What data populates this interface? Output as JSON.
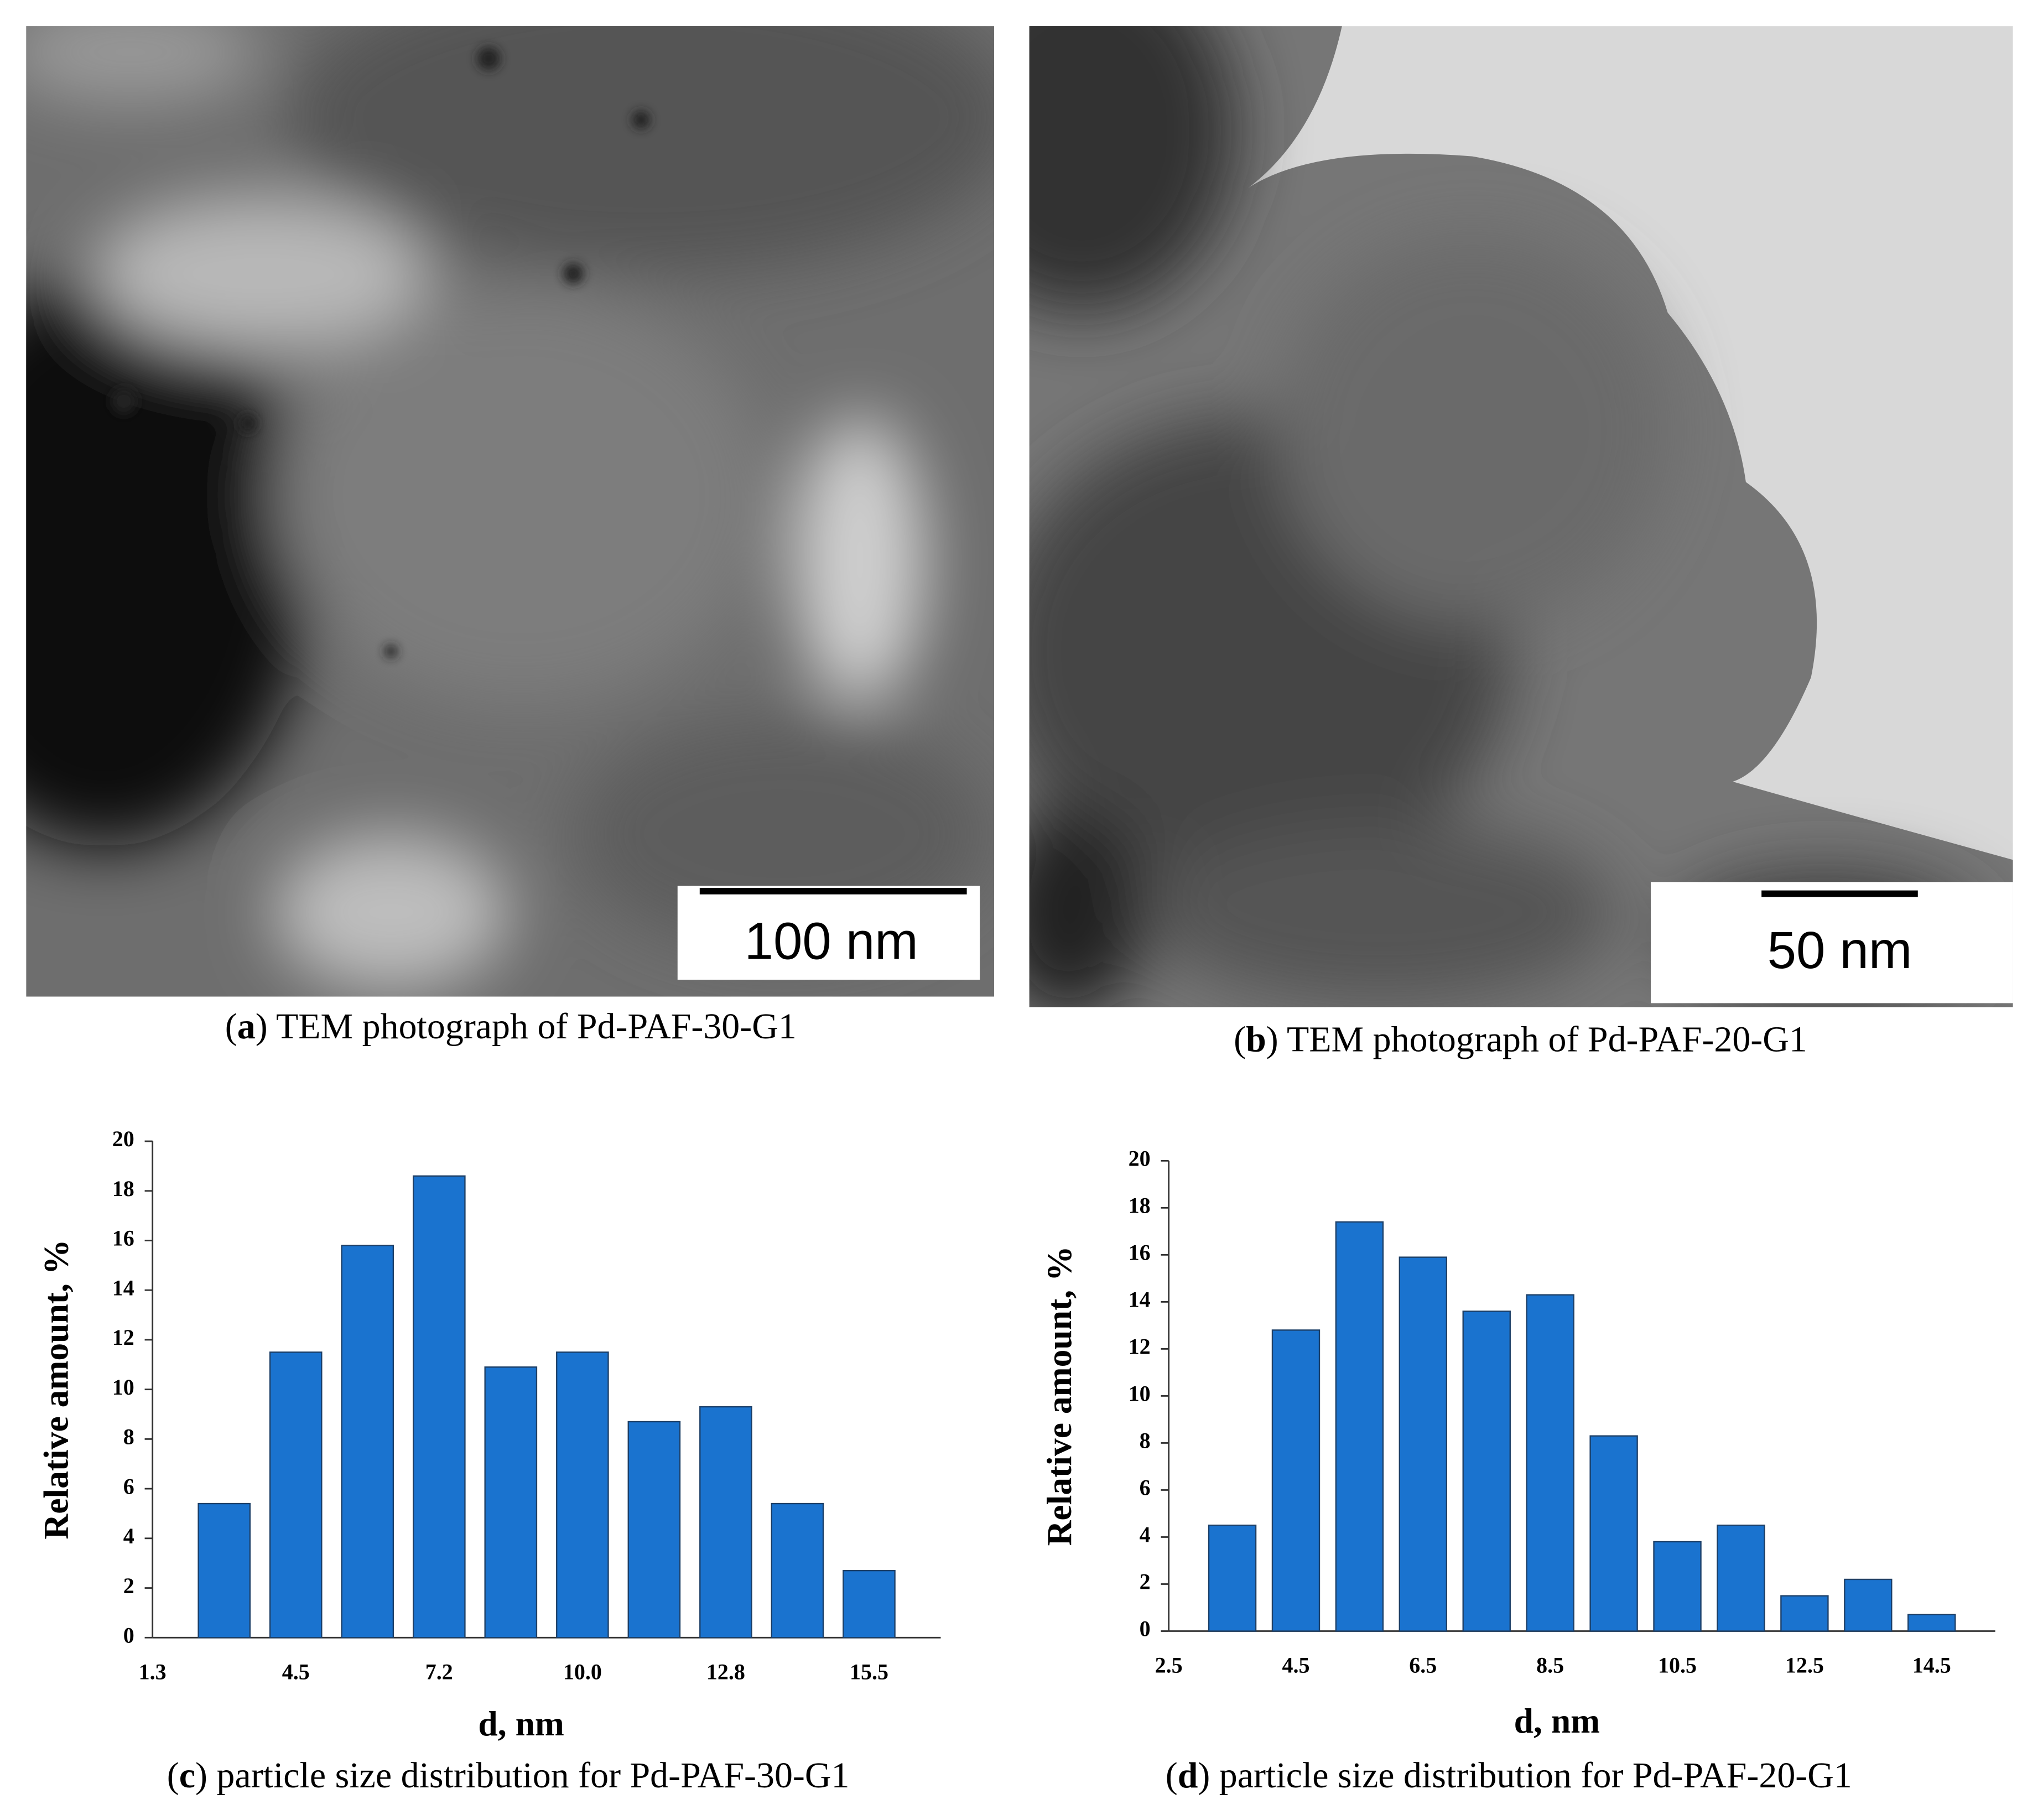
{
  "panels": [
    {
      "caption": [
        "(",
        "a",
        ") TEM photograph of Pd-PAF-30-G1"
      ],
      "scale_bar": "100 nm"
    },
    {
      "caption": [
        "(",
        "b",
        ") TEM photograph of Pd-PAF-20-G1"
      ],
      "scale_bar": "50 nm"
    }
  ],
  "chart_data": [
    {
      "type": "bar",
      "caption": [
        "(",
        "c",
        ") particle size distribution for Pd-PAF-30-G1"
      ],
      "x_label": "d, nm",
      "y_label": "Relative amount, %",
      "categories": [
        "1.3",
        null,
        "4.5",
        null,
        "7.2",
        null,
        "10.0",
        null,
        "12.8",
        null,
        "15.5"
      ],
      "values": [
        null,
        5.4,
        11.5,
        15.8,
        18.6,
        10.9,
        11.5,
        8.7,
        9.3,
        5.4,
        2.7
      ],
      "color": "#1a73cf",
      "ylim": [
        0,
        20
      ],
      "yticks": [
        0,
        2,
        4,
        6,
        8,
        10,
        12,
        14,
        16,
        18,
        20
      ]
    },
    {
      "type": "bar",
      "caption": [
        "(",
        "d",
        ") particle size distribution for Pd-PAF-20-G1"
      ],
      "x_label": "d, nm",
      "y_label": "Relative amount, %",
      "categories": [
        "2.5",
        null,
        "4.5",
        null,
        "6.5",
        null,
        "8.5",
        null,
        "10.5",
        null,
        "12.5",
        null,
        "14.5"
      ],
      "values": [
        null,
        4.5,
        12.8,
        17.4,
        15.9,
        13.6,
        14.3,
        8.3,
        3.8,
        4.5,
        1.5,
        2.2,
        0.7
      ],
      "color": "#1a73cf",
      "ylim": [
        0,
        20
      ],
      "yticks": [
        0,
        2,
        4,
        6,
        8,
        10,
        12,
        14,
        16,
        18,
        20
      ]
    }
  ]
}
